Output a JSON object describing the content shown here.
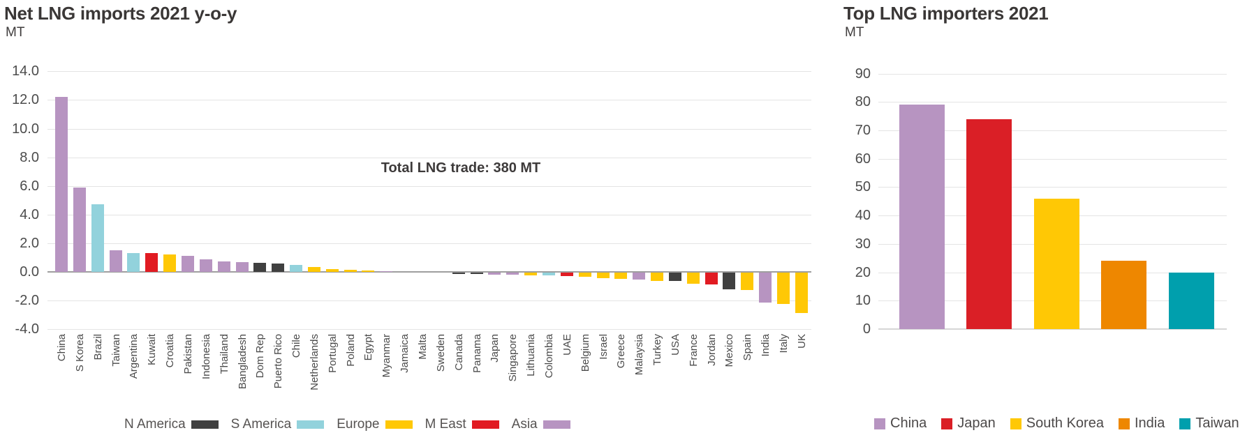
{
  "chart_data": [
    {
      "type": "bar",
      "title": "Net LNG imports 2021 y-o-y",
      "ylabel": "MT",
      "annotation": "Total LNG trade: 380 MT",
      "ylim": [
        -4.0,
        14.0
      ],
      "y_tick_values": [
        14,
        12,
        10,
        8,
        6,
        4,
        2,
        0,
        -2,
        -4
      ],
      "y_tick_labels": [
        "14.0",
        "12.0",
        "10.0",
        "8.0",
        "6.0",
        "4.0",
        "2.0",
        "0.0",
        "-2.0",
        "-4.0"
      ],
      "grid": true,
      "legend_position": "bottom",
      "region_colors": {
        "N America": "#404040",
        "S America": "#92d2dc",
        "Europe": "#ffc805",
        "M East": "#e11b22",
        "Asia": "#b794c1"
      },
      "legend": [
        "N America",
        "S America",
        "Europe",
        "M East",
        "Asia"
      ],
      "categories": [
        "China",
        "S Korea",
        "Brazil",
        "Taiwan",
        "Argentina",
        "Kuwait",
        "Croatia",
        "Pakistan",
        "Indonesia",
        "Thailand",
        "Bangladesh",
        "Dom Rep",
        "Puerto Rico",
        "Chile",
        "Netherlands",
        "Portugal",
        "Poland",
        "Egypt",
        "Myanmar",
        "Jamaica",
        "Malta",
        "Sweden",
        "Canada",
        "Panama",
        "Japan",
        "Singapore",
        "Lithuania",
        "Colombia",
        "UAE",
        "Belgium",
        "Israel",
        "Greece",
        "Malaysia",
        "Turkey",
        "USA",
        "France",
        "Jordan",
        "Mexico",
        "Spain",
        "India",
        "Italy",
        "UK"
      ],
      "values": [
        12.2,
        5.9,
        4.7,
        1.5,
        1.3,
        1.3,
        1.2,
        1.1,
        0.9,
        0.75,
        0.7,
        0.65,
        0.6,
        0.5,
        0.35,
        0.2,
        0.15,
        0.1,
        0.05,
        0.02,
        0.02,
        -0.02,
        -0.1,
        -0.1,
        -0.15,
        -0.15,
        -0.2,
        -0.2,
        -0.25,
        -0.3,
        -0.4,
        -0.45,
        -0.5,
        -0.6,
        -0.6,
        -0.8,
        -0.85,
        -1.15,
        -1.2,
        -2.1,
        -2.2,
        -2.8
      ],
      "regions": [
        "Asia",
        "Asia",
        "S America",
        "Asia",
        "S America",
        "M East",
        "Europe",
        "Asia",
        "Asia",
        "Asia",
        "Asia",
        "N America",
        "N America",
        "S America",
        "Europe",
        "Europe",
        "Europe",
        "Europe",
        "Asia",
        "N America",
        "Europe",
        "Europe",
        "N America",
        "N America",
        "Asia",
        "Asia",
        "Europe",
        "S America",
        "M East",
        "Europe",
        "Europe",
        "Europe",
        "Asia",
        "Europe",
        "N America",
        "Europe",
        "M East",
        "N America",
        "Europe",
        "Asia",
        "Europe",
        "Europe"
      ]
    },
    {
      "type": "bar",
      "title": "Top LNG importers 2021",
      "ylabel": "MT",
      "ylim": [
        0,
        90
      ],
      "y_tick_values": [
        90,
        80,
        70,
        60,
        50,
        40,
        30,
        20,
        10,
        0
      ],
      "y_tick_labels": [
        "90",
        "80",
        "70",
        "60",
        "50",
        "40",
        "30",
        "20",
        "10",
        "0"
      ],
      "grid": true,
      "legend_position": "bottom",
      "categories": [
        "China",
        "Japan",
        "South Korea",
        "India",
        "Taiwan"
      ],
      "values": [
        79,
        74,
        46,
        24,
        20
      ],
      "colors": [
        "#b794c1",
        "#da1f26",
        "#ffc805",
        "#ee8700",
        "#009fad"
      ]
    }
  ]
}
